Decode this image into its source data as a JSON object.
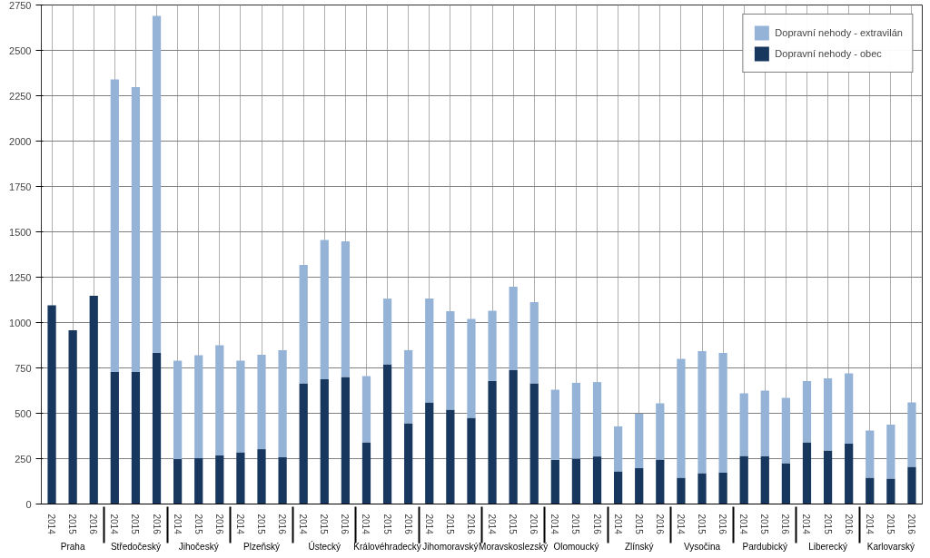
{
  "chart_data": {
    "type": "bar",
    "stacked": true,
    "categories": [
      "2014",
      "2015",
      "2016",
      "2014",
      "2015",
      "2016",
      "2014",
      "2015",
      "2016",
      "2014",
      "2015",
      "2016",
      "2014",
      "2015",
      "2016",
      "2014",
      "2015",
      "2016",
      "2014",
      "2015",
      "2016",
      "2014",
      "2015",
      "2016",
      "2014",
      "2015",
      "2016",
      "2014",
      "2015",
      "2016",
      "2014",
      "2015",
      "2016",
      "2014",
      "2015",
      "2016",
      "2014",
      "2015",
      "2016",
      "2014",
      "2015",
      "2016"
    ],
    "annotations": [
      "Praha",
      "Středočeský",
      "Jihočeský",
      "Plzeňský",
      "Ústecký",
      "Královéhradecký",
      "Jihomoravský",
      "Moravskoslezský",
      "Olomoucký",
      "Zlínský",
      "Vysočina",
      "Pardubický",
      "Liberecký",
      "Karlovarský"
    ],
    "series": [
      {
        "name": "Dopravní nehody - obec",
        "color": "#17375e",
        "values": [
          1095,
          958,
          1148,
          728,
          728,
          832,
          248,
          252,
          268,
          285,
          302,
          258,
          665,
          688,
          700,
          340,
          770,
          445,
          560,
          520,
          475,
          678,
          738,
          665,
          243,
          250,
          262,
          180,
          198,
          245,
          145,
          170,
          172,
          265,
          262,
          225,
          340,
          295,
          332,
          145,
          140,
          205
        ]
      },
      {
        "name": "Dopravní nehody - extravilán",
        "color": "#95b3d7",
        "values": [
          null,
          null,
          null,
          1612,
          1570,
          1858,
          542,
          568,
          607,
          505,
          520,
          590,
          653,
          767,
          748,
          365,
          362,
          403,
          572,
          542,
          545,
          387,
          460,
          447,
          387,
          418,
          410,
          248,
          300,
          310,
          655,
          673,
          661,
          345,
          363,
          360,
          338,
          398,
          388,
          260,
          297,
          355
        ]
      }
    ],
    "ylim": [
      0,
      2750
    ],
    "yticks": [
      0,
      250,
      500,
      750,
      1000,
      1250,
      1500,
      1750,
      2000,
      2250,
      2500,
      2750
    ],
    "grid": true,
    "legend": "top right"
  }
}
